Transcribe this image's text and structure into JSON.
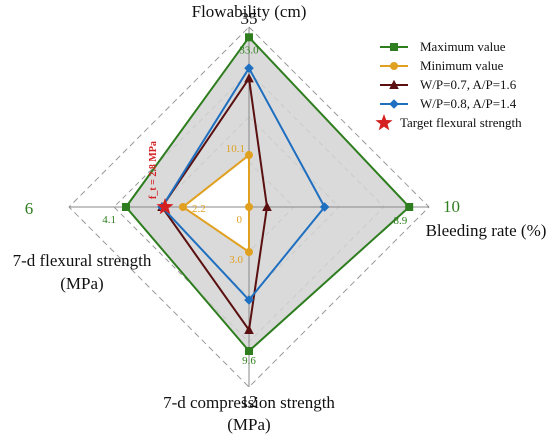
{
  "chart_data": {
    "type": "radar",
    "title": "",
    "axes": [
      {
        "key": "flowability",
        "label": [
          "Flowability (cm)"
        ],
        "max": 35,
        "max_label": "35"
      },
      {
        "key": "bleeding",
        "label": [
          "Bleeding rate (%)"
        ],
        "max": 10,
        "max_label": "10"
      },
      {
        "key": "compression",
        "label": [
          "7-d compression strength",
          "(MPa)"
        ],
        "max": 12,
        "max_label": "12"
      },
      {
        "key": "flexural",
        "label": [
          "7-d flexural strength",
          "(MPa)"
        ],
        "max": 6,
        "max_label": "6"
      }
    ],
    "grid_levels": 4,
    "series": [
      {
        "name": "Maximum value",
        "color": "#2e7d1e",
        "marker": "square",
        "values": [
          33.0,
          8.9,
          9.6,
          4.1
        ],
        "value_labels": [
          "33.0",
          "8.9",
          "9.6",
          "4.1"
        ],
        "fill": "#d3d3d3"
      },
      {
        "name": "Minimum value",
        "color": "#e0a020",
        "marker": "circle",
        "values": [
          10.1,
          0,
          3.0,
          2.2
        ],
        "value_labels": [
          "10.1",
          "0",
          "3.0",
          "2.2"
        ],
        "fill": "#ffffff"
      },
      {
        "name": "W/P=0.7, A/P=1.6",
        "color": "#5a1010",
        "marker": "triangle",
        "values": [
          25.0,
          1.0,
          8.2,
          2.9
        ]
      },
      {
        "name": "W/P=0.8, A/P=1.4",
        "color": "#1e6fc0",
        "marker": "diamond",
        "values": [
          27.0,
          4.2,
          6.2,
          2.9
        ]
      }
    ],
    "target": {
      "name": "Target flexural strength",
      "axis": "flexural",
      "value": 2.8,
      "label": "f_t = 2.8 MPa",
      "color": "#d42020",
      "marker": "star"
    },
    "legend_position": "top-right"
  }
}
